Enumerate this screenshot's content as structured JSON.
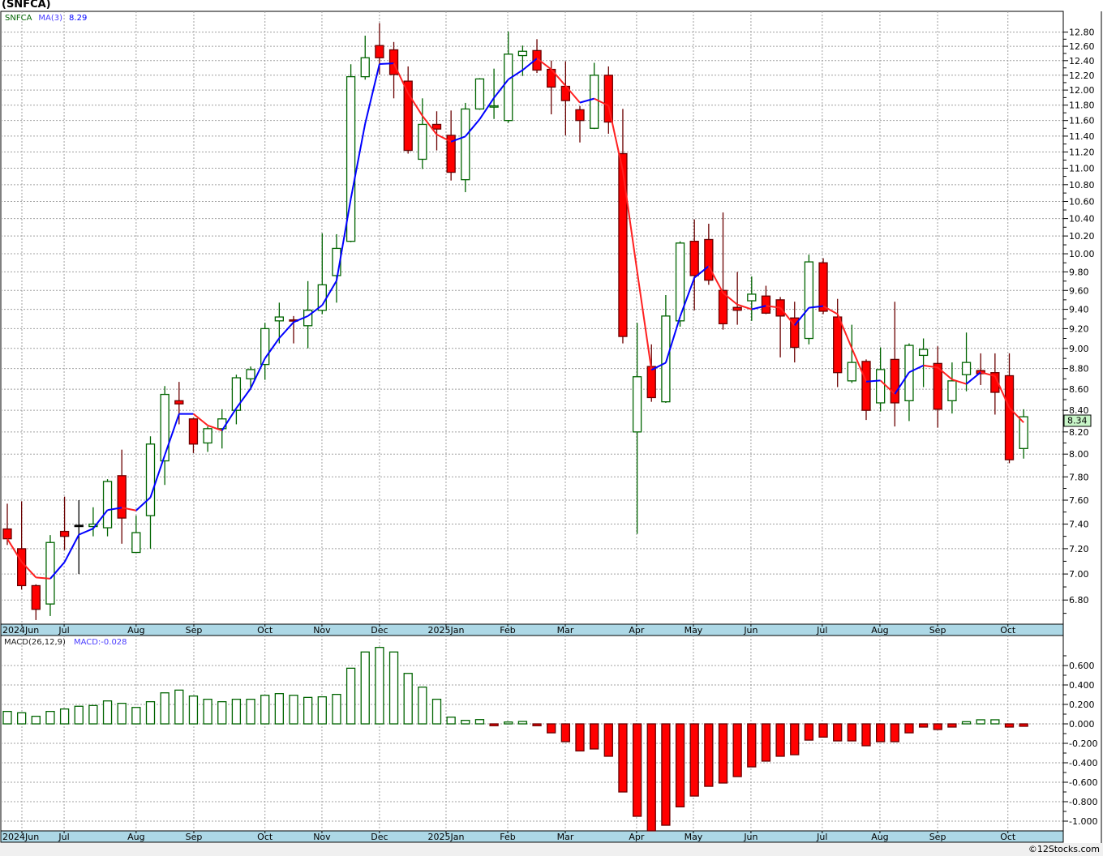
{
  "title": "(SNFCA)",
  "copyright": "©12Stocks.com",
  "colors": {
    "up_stroke": "#006400",
    "down_fill": "#ff0000",
    "down_stroke": "#6b0000",
    "ma_up": "#0000ff",
    "ma_down": "#ff2020",
    "axis_band": "#add8e6",
    "last_price_box": "#c8f5c8"
  },
  "chart_data": [
    {
      "type": "candlestick",
      "symbol_label": "SNFCA",
      "indicator_label": "MA(3)",
      "indicator_value": "8.29",
      "last_price": "8.34",
      "y_scale": "log",
      "ylim": [
        6.62,
        13.05
      ],
      "grid": true,
      "y_ticks": [
        "12.80",
        "12.60",
        "12.40",
        "12.20",
        "12.00",
        "11.80",
        "11.60",
        "11.40",
        "11.20",
        "11.00",
        "10.80",
        "10.60",
        "10.40",
        "10.20",
        "10.00",
        "9.80",
        "9.60",
        "9.40",
        "9.20",
        "9.00",
        "8.80",
        "8.60",
        "8.40",
        "8.20",
        "8.00",
        "7.80",
        "7.60",
        "7.40",
        "7.20",
        "7.00",
        "6.80"
      ],
      "x_ticks": [
        {
          "label": "2024Jun",
          "week": 1.02
        },
        {
          "label": "Jul",
          "week": 3.97
        },
        {
          "label": "Aug",
          "week": 9.0
        },
        {
          "label": "Sep",
          "week": 13.03
        },
        {
          "label": "Oct",
          "week": 18.0
        },
        {
          "label": "Nov",
          "week": 21.98
        },
        {
          "label": "Dec",
          "week": 26.0
        },
        {
          "label": "2025Jan",
          "week": 30.65
        },
        {
          "label": "Feb",
          "week": 34.96
        },
        {
          "label": "Mar",
          "week": 38.98
        },
        {
          "label": "Apr",
          "week": 43.96
        },
        {
          "label": "May",
          "week": 47.93
        },
        {
          "label": "Jun",
          "week": 51.95
        },
        {
          "label": "Jul",
          "week": 56.93
        },
        {
          "label": "Aug",
          "week": 60.96
        },
        {
          "label": "Sep",
          "week": 64.99
        },
        {
          "label": "Oct",
          "week": 69.9
        }
      ],
      "ohlc_fields": [
        "open",
        "high",
        "low",
        "close"
      ],
      "ohlc": [
        [
          7.36,
          7.57,
          7.23,
          7.28
        ],
        [
          7.2,
          7.59,
          6.88,
          6.91
        ],
        [
          6.91,
          6.92,
          6.65,
          6.73
        ],
        [
          6.77,
          7.31,
          6.68,
          7.25
        ],
        [
          7.34,
          7.63,
          7.19,
          7.3
        ],
        [
          7.39,
          7.6,
          7.0,
          7.39
        ],
        [
          7.38,
          7.54,
          7.3,
          7.4
        ],
        [
          7.37,
          7.78,
          7.3,
          7.76
        ],
        [
          7.81,
          8.04,
          7.24,
          7.45
        ],
        [
          7.17,
          7.47,
          7.17,
          7.33
        ],
        [
          7.47,
          8.16,
          7.2,
          8.09
        ],
        [
          7.94,
          8.63,
          7.73,
          8.55
        ],
        [
          8.49,
          8.67,
          8.27,
          8.46
        ],
        [
          8.32,
          8.33,
          8.01,
          8.09
        ],
        [
          8.1,
          8.25,
          8.02,
          8.23
        ],
        [
          8.23,
          8.41,
          8.05,
          8.32
        ],
        [
          8.4,
          8.74,
          8.27,
          8.71
        ],
        [
          8.7,
          8.82,
          8.61,
          8.79
        ],
        [
          8.84,
          9.26,
          8.69,
          9.2
        ],
        [
          9.28,
          9.47,
          9.05,
          9.32
        ],
        [
          9.29,
          9.33,
          9.05,
          9.28
        ],
        [
          9.23,
          9.7,
          9.0,
          9.39
        ],
        [
          9.39,
          10.23,
          9.35,
          9.66
        ],
        [
          9.76,
          10.22,
          9.47,
          10.06
        ],
        [
          10.14,
          12.35,
          10.13,
          12.18
        ],
        [
          12.18,
          12.75,
          12.14,
          12.44
        ],
        [
          12.61,
          12.93,
          12.21,
          12.44
        ],
        [
          12.55,
          12.66,
          11.89,
          12.21
        ],
        [
          12.12,
          12.32,
          11.18,
          11.22
        ],
        [
          11.11,
          11.89,
          10.99,
          11.55
        ],
        [
          11.55,
          11.72,
          11.22,
          11.49
        ],
        [
          11.41,
          11.73,
          10.85,
          10.95
        ],
        [
          10.86,
          11.83,
          10.71,
          11.75
        ],
        [
          11.75,
          12.16,
          11.74,
          12.15
        ],
        [
          11.78,
          12.29,
          11.62,
          11.79
        ],
        [
          11.6,
          12.81,
          11.57,
          12.49
        ],
        [
          12.47,
          12.61,
          12.19,
          12.53
        ],
        [
          12.54,
          12.7,
          12.23,
          12.27
        ],
        [
          12.28,
          12.4,
          11.68,
          12.04
        ],
        [
          12.05,
          12.39,
          11.41,
          11.86
        ],
        [
          11.74,
          11.79,
          11.32,
          11.6
        ],
        [
          11.5,
          12.37,
          11.49,
          12.2
        ],
        [
          12.2,
          12.32,
          11.43,
          11.58
        ],
        [
          11.18,
          11.75,
          9.05,
          9.12
        ],
        [
          8.2,
          9.26,
          7.32,
          8.72
        ],
        [
          8.82,
          9.04,
          8.48,
          8.52
        ],
        [
          8.48,
          9.55,
          8.47,
          9.33
        ],
        [
          9.28,
          10.14,
          9.22,
          10.12
        ],
        [
          10.14,
          10.39,
          9.39,
          9.76
        ],
        [
          10.16,
          10.34,
          9.66,
          9.71
        ],
        [
          9.6,
          10.47,
          9.19,
          9.25
        ],
        [
          9.42,
          9.8,
          9.24,
          9.39
        ],
        [
          9.49,
          9.75,
          9.28,
          9.56
        ],
        [
          9.54,
          9.65,
          9.35,
          9.36
        ],
        [
          9.5,
          9.53,
          8.91,
          9.33
        ],
        [
          9.31,
          9.48,
          8.86,
          9.01
        ],
        [
          9.1,
          9.99,
          9.04,
          9.91
        ],
        [
          9.9,
          9.95,
          9.35,
          9.38
        ],
        [
          9.32,
          9.51,
          8.62,
          8.76
        ],
        [
          8.68,
          9.24,
          8.66,
          8.86
        ],
        [
          8.87,
          8.89,
          8.31,
          8.4
        ],
        [
          8.47,
          9.01,
          8.39,
          8.79
        ],
        [
          8.89,
          9.48,
          8.25,
          8.47
        ],
        [
          8.49,
          9.05,
          8.3,
          9.03
        ],
        [
          8.93,
          9.1,
          8.62,
          8.99
        ],
        [
          8.85,
          9.02,
          8.24,
          8.41
        ],
        [
          8.49,
          8.86,
          8.37,
          8.68
        ],
        [
          8.74,
          9.16,
          8.58,
          8.86
        ],
        [
          8.78,
          8.95,
          8.64,
          8.75
        ],
        [
          8.76,
          8.95,
          8.36,
          8.57
        ],
        [
          8.73,
          8.95,
          7.92,
          7.95
        ],
        [
          8.05,
          8.41,
          7.96,
          8.34
        ]
      ],
      "ma_period": 3
    },
    {
      "type": "bar",
      "indicator_label": "MACD(26,12,9)",
      "value_label": "MACD:-0.028",
      "ylim": [
        -1.1,
        0.8
      ],
      "grid": true,
      "y_ticks": [
        "0.600",
        "0.400",
        "0.200",
        "0.000",
        "-0.200",
        "-0.400",
        "-0.600",
        "-0.800",
        "-1.000"
      ],
      "values": [
        0.128,
        0.114,
        0.078,
        0.128,
        0.153,
        0.181,
        0.189,
        0.236,
        0.211,
        0.169,
        0.228,
        0.319,
        0.347,
        0.286,
        0.253,
        0.228,
        0.253,
        0.253,
        0.294,
        0.311,
        0.294,
        0.272,
        0.278,
        0.303,
        0.572,
        0.739,
        0.786,
        0.739,
        0.519,
        0.378,
        0.253,
        0.069,
        0.036,
        0.044,
        -0.019,
        0.019,
        0.025,
        -0.019,
        -0.092,
        -0.183,
        -0.278,
        -0.258,
        -0.333,
        -0.7,
        -0.95,
        -1.1,
        -1.042,
        -0.853,
        -0.742,
        -0.642,
        -0.608,
        -0.542,
        -0.442,
        -0.383,
        -0.333,
        -0.317,
        -0.167,
        -0.136,
        -0.175,
        -0.175,
        -0.225,
        -0.183,
        -0.183,
        -0.092,
        -0.033,
        -0.058,
        -0.033,
        0.022,
        0.042,
        0.042,
        -0.033,
        -0.025
      ]
    }
  ]
}
